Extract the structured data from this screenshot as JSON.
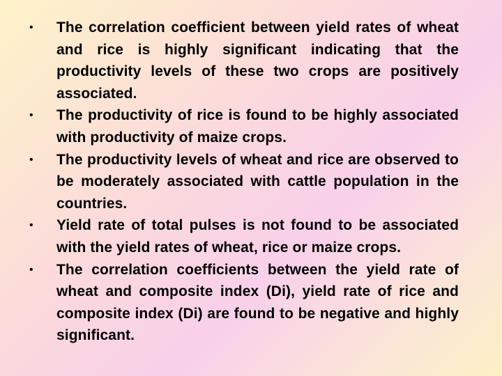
{
  "slide": {
    "bullets": [
      "The correlation coefficient between yield rates of wheat and rice is highly significant indicating that the productivity levels of these two crops are positively associated.",
      "The productivity of rice is found to be highly associated with productivity of maize crops.",
      "The productivity levels of wheat and rice are observed to be moderately associated with cattle population in the countries.",
      "Yield rate of total pulses is not found to be associated with the yield rates of wheat, rice or maize crops.",
      "The correlation coefficients between the yield rate of wheat and composite index (Di), yield rate of rice and composite index (Di) are found to be negative and highly significant."
    ],
    "bullet_symbol": "•"
  }
}
